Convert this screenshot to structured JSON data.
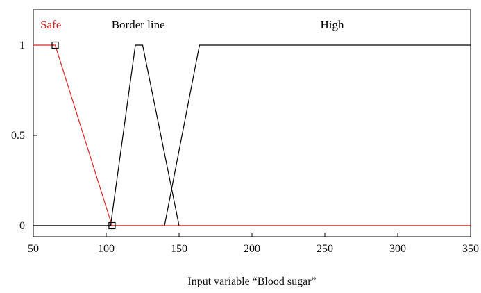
{
  "chart_data": {
    "type": "line",
    "title": "",
    "xlabel": "Input variable “Blood sugar”",
    "ylabel": "",
    "xlim": [
      50,
      350
    ],
    "ylim": [
      -0.08,
      1.2
    ],
    "x_ticks": [
      "50",
      "100",
      "150",
      "200",
      "250",
      "300",
      "350"
    ],
    "x_tick_values": [
      50,
      100,
      150,
      200,
      250,
      300,
      350
    ],
    "y_ticks": [
      "0",
      "0.5",
      "1"
    ],
    "y_tick_values": [
      0,
      0.5,
      1
    ],
    "grid": false,
    "series": [
      {
        "name": "Safe",
        "color": "#d62728",
        "points": [
          [
            50,
            1
          ],
          [
            65,
            1
          ],
          [
            104,
            0
          ],
          [
            350,
            0
          ]
        ],
        "markers": [
          [
            65,
            1
          ],
          [
            104,
            0
          ]
        ]
      },
      {
        "name": "Border line",
        "color": "#000000",
        "points": [
          [
            50,
            0
          ],
          [
            103,
            0
          ],
          [
            120,
            1
          ],
          [
            125,
            1
          ],
          [
            150,
            0
          ],
          [
            350,
            0
          ]
        ]
      },
      {
        "name": "High",
        "color": "#000000",
        "points": [
          [
            50,
            0
          ],
          [
            140,
            0
          ],
          [
            164,
            1
          ],
          [
            350,
            1
          ]
        ]
      }
    ],
    "mf_labels": [
      {
        "text": "Safe",
        "x": 62,
        "y": 1.1,
        "color": "#d62728"
      },
      {
        "text": "Border line",
        "x": 122,
        "y": 1.1,
        "color": "#000000"
      },
      {
        "text": "High",
        "x": 255,
        "y": 1.1,
        "color": "#000000"
      }
    ]
  }
}
